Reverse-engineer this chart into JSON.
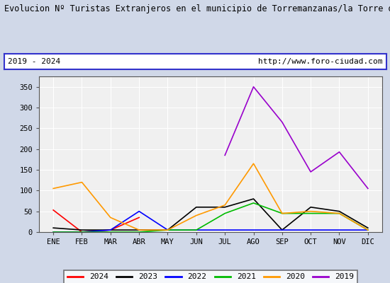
{
  "title": "Evolucion Nº Turistas Extranjeros en el municipio de Torremanzanas/la Torre de les Maçane",
  "subtitle_left": "2019 - 2024",
  "subtitle_right": "http://www.foro-ciudad.com",
  "months": [
    "ENE",
    "FEB",
    "MAR",
    "ABR",
    "MAY",
    "JUN",
    "JUL",
    "AGO",
    "SEP",
    "OCT",
    "NOV",
    "DIC"
  ],
  "series": {
    "2024": {
      "color": "#ff0000",
      "data": [
        53,
        0,
        5,
        35,
        null,
        null,
        null,
        null,
        null,
        null,
        null,
        null
      ]
    },
    "2023": {
      "color": "#000000",
      "data": [
        10,
        5,
        5,
        5,
        5,
        60,
        60,
        80,
        5,
        60,
        50,
        10
      ]
    },
    "2022": {
      "color": "#0000ff",
      "data": [
        0,
        0,
        5,
        50,
        5,
        5,
        5,
        5,
        5,
        5,
        5,
        5
      ]
    },
    "2021": {
      "color": "#00bb00",
      "data": [
        0,
        0,
        0,
        0,
        5,
        5,
        45,
        70,
        45,
        45,
        45,
        5
      ]
    },
    "2020": {
      "color": "#ff9900",
      "data": [
        105,
        120,
        35,
        5,
        5,
        40,
        65,
        165,
        45,
        50,
        45,
        5
      ]
    },
    "2019": {
      "color": "#9900cc",
      "data": [
        null,
        null,
        null,
        null,
        null,
        null,
        185,
        350,
        265,
        145,
        193,
        105
      ]
    }
  },
  "ylim": [
    0,
    375
  ],
  "yticks": [
    0,
    50,
    100,
    150,
    200,
    250,
    300,
    350
  ],
  "fig_bg_color": "#d0d8e8",
  "plot_bg_color": "#f0f0f0",
  "subtitle_bg_color": "#ffffff",
  "subtitle_border_color": "#3333cc",
  "legend_order": [
    "2024",
    "2023",
    "2022",
    "2021",
    "2020",
    "2019"
  ],
  "title_fontsize": 8.5,
  "tick_fontsize": 7.5,
  "legend_fontsize": 8
}
